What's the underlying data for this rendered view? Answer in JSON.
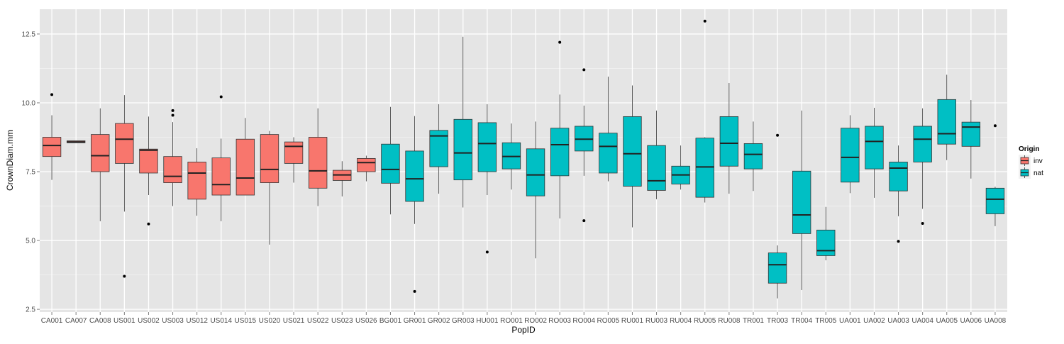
{
  "chart_data": {
    "type": "box",
    "xlabel": "PopID",
    "ylabel": "CrownDiam.mm",
    "ylim": [
      2.4,
      13.4
    ],
    "yticks": [
      2.5,
      5.0,
      7.5,
      10.0,
      12.5
    ],
    "ytick_labels": [
      "2.5",
      "5.0",
      "7.5",
      "10.0",
      "12.5"
    ],
    "grid": true,
    "legend": {
      "title": "Origin",
      "placement": "right",
      "entries": [
        {
          "label": "inv",
          "color": "#F8766D"
        },
        {
          "label": "nat",
          "color": "#00BFC4"
        }
      ]
    },
    "colors": {
      "inv": "#F8766D",
      "nat": "#00BFC4",
      "panel": "#E5E5E5",
      "grid": "#FFFFFF"
    },
    "categories": [
      "CA001",
      "CA007",
      "CA008",
      "US001",
      "US002",
      "US003",
      "US012",
      "US014",
      "US015",
      "US020",
      "US021",
      "US022",
      "US023",
      "US026",
      "BG001",
      "GR001",
      "GR002",
      "GR003",
      "HU001",
      "RO001",
      "RO002",
      "RO003",
      "RO004",
      "RO005",
      "RU001",
      "RU003",
      "RU004",
      "RU005",
      "RU008",
      "TR001",
      "TR003",
      "TR004",
      "TR005",
      "UA001",
      "UA002",
      "UA003",
      "UA004",
      "UA005",
      "UA006",
      "UA008"
    ],
    "boxes": [
      {
        "id": "CA001",
        "origin": "inv",
        "whisker_low": 7.2,
        "q1": 8.05,
        "median": 8.45,
        "q3": 8.75,
        "whisker_high": 9.55,
        "outliers": [
          10.3
        ]
      },
      {
        "id": "CA007",
        "origin": "inv",
        "whisker_low": 8.55,
        "q1": 8.55,
        "median": 8.58,
        "q3": 8.62,
        "whisker_high": 8.62,
        "outliers": []
      },
      {
        "id": "CA008",
        "origin": "inv",
        "whisker_low": 5.7,
        "q1": 7.5,
        "median": 8.08,
        "q3": 8.85,
        "whisker_high": 9.8,
        "outliers": []
      },
      {
        "id": "US001",
        "origin": "inv",
        "whisker_low": 6.05,
        "q1": 7.8,
        "median": 8.68,
        "q3": 9.25,
        "whisker_high": 10.28,
        "outliers": [
          3.7
        ]
      },
      {
        "id": "US002",
        "origin": "inv",
        "whisker_low": 6.65,
        "q1": 7.45,
        "median": 8.28,
        "q3": 8.32,
        "whisker_high": 9.5,
        "outliers": [
          5.6
        ]
      },
      {
        "id": "US003",
        "origin": "inv",
        "whisker_low": 6.25,
        "q1": 7.1,
        "median": 7.33,
        "q3": 8.05,
        "whisker_high": 9.3,
        "outliers": [
          9.55,
          9.72
        ]
      },
      {
        "id": "US012",
        "origin": "inv",
        "whisker_low": 5.9,
        "q1": 6.5,
        "median": 7.45,
        "q3": 7.85,
        "whisker_high": 8.35,
        "outliers": []
      },
      {
        "id": "US014",
        "origin": "inv",
        "whisker_low": 5.7,
        "q1": 6.65,
        "median": 7.03,
        "q3": 8.0,
        "whisker_high": 8.7,
        "outliers": [
          10.22
        ]
      },
      {
        "id": "US015",
        "origin": "inv",
        "whisker_low": 6.65,
        "q1": 6.65,
        "median": 7.27,
        "q3": 8.68,
        "whisker_high": 9.45,
        "outliers": []
      },
      {
        "id": "US020",
        "origin": "inv",
        "whisker_low": 4.85,
        "q1": 7.1,
        "median": 7.58,
        "q3": 8.85,
        "whisker_high": 8.98,
        "outliers": []
      },
      {
        "id": "US021",
        "origin": "inv",
        "whisker_low": 7.1,
        "q1": 7.8,
        "median": 8.42,
        "q3": 8.58,
        "whisker_high": 8.75,
        "outliers": []
      },
      {
        "id": "US022",
        "origin": "inv",
        "whisker_low": 6.25,
        "q1": 6.9,
        "median": 7.53,
        "q3": 8.75,
        "whisker_high": 9.8,
        "outliers": []
      },
      {
        "id": "US023",
        "origin": "inv",
        "whisker_low": 6.6,
        "q1": 7.18,
        "median": 7.38,
        "q3": 7.55,
        "whisker_high": 7.88,
        "outliers": []
      },
      {
        "id": "US026",
        "origin": "inv",
        "whisker_low": 7.15,
        "q1": 7.5,
        "median": 7.83,
        "q3": 7.98,
        "whisker_high": 8.08,
        "outliers": []
      },
      {
        "id": "BG001",
        "origin": "nat",
        "whisker_low": 5.95,
        "q1": 7.08,
        "median": 7.58,
        "q3": 8.5,
        "whisker_high": 9.85,
        "outliers": []
      },
      {
        "id": "GR001",
        "origin": "nat",
        "whisker_low": 5.6,
        "q1": 6.42,
        "median": 7.24,
        "q3": 8.25,
        "whisker_high": 9.52,
        "outliers": [
          3.15
        ]
      },
      {
        "id": "GR002",
        "origin": "nat",
        "whisker_low": 6.7,
        "q1": 7.68,
        "median": 8.8,
        "q3": 9.0,
        "whisker_high": 9.95,
        "outliers": []
      },
      {
        "id": "GR003",
        "origin": "nat",
        "whisker_low": 6.2,
        "q1": 7.2,
        "median": 8.18,
        "q3": 9.4,
        "whisker_high": 12.4,
        "outliers": []
      },
      {
        "id": "HU001",
        "origin": "nat",
        "whisker_low": 6.65,
        "q1": 7.5,
        "median": 8.52,
        "q3": 9.28,
        "whisker_high": 9.95,
        "outliers": [
          4.58
        ]
      },
      {
        "id": "RO001",
        "origin": "nat",
        "whisker_low": 6.85,
        "q1": 7.6,
        "median": 8.05,
        "q3": 8.55,
        "whisker_high": 9.25,
        "outliers": []
      },
      {
        "id": "RO002",
        "origin": "nat",
        "whisker_low": 4.35,
        "q1": 6.62,
        "median": 7.38,
        "q3": 8.33,
        "whisker_high": 9.32,
        "outliers": []
      },
      {
        "id": "RO003",
        "origin": "nat",
        "whisker_low": 5.8,
        "q1": 7.35,
        "median": 8.48,
        "q3": 9.08,
        "whisker_high": 10.3,
        "outliers": [
          12.2
        ]
      },
      {
        "id": "RO004",
        "origin": "nat",
        "whisker_low": 7.35,
        "q1": 8.25,
        "median": 8.68,
        "q3": 9.15,
        "whisker_high": 9.9,
        "outliers": [
          11.2,
          5.72
        ]
      },
      {
        "id": "RO005",
        "origin": "nat",
        "whisker_low": 7.15,
        "q1": 7.45,
        "median": 8.42,
        "q3": 8.9,
        "whisker_high": 10.95,
        "outliers": []
      },
      {
        "id": "RU001",
        "origin": "nat",
        "whisker_low": 5.48,
        "q1": 6.97,
        "median": 8.15,
        "q3": 9.5,
        "whisker_high": 10.63,
        "outliers": []
      },
      {
        "id": "RU003",
        "origin": "nat",
        "whisker_low": 6.5,
        "q1": 6.82,
        "median": 7.17,
        "q3": 8.45,
        "whisker_high": 9.72,
        "outliers": []
      },
      {
        "id": "RU004",
        "origin": "nat",
        "whisker_low": 6.85,
        "q1": 7.05,
        "median": 7.38,
        "q3": 7.7,
        "whisker_high": 8.45,
        "outliers": []
      },
      {
        "id": "RU005",
        "origin": "nat",
        "whisker_low": 6.38,
        "q1": 6.57,
        "median": 7.67,
        "q3": 8.72,
        "whisker_high": 8.75,
        "outliers": [
          12.97
        ]
      },
      {
        "id": "RU008",
        "origin": "nat",
        "whisker_low": 6.7,
        "q1": 7.7,
        "median": 8.53,
        "q3": 9.5,
        "whisker_high": 10.72,
        "outliers": []
      },
      {
        "id": "TR001",
        "origin": "nat",
        "whisker_low": 6.8,
        "q1": 7.6,
        "median": 8.13,
        "q3": 8.52,
        "whisker_high": 9.32,
        "outliers": []
      },
      {
        "id": "TR003",
        "origin": "nat",
        "whisker_low": 2.9,
        "q1": 3.45,
        "median": 4.12,
        "q3": 4.55,
        "whisker_high": 4.82,
        "outliers": [
          8.82
        ]
      },
      {
        "id": "TR004",
        "origin": "nat",
        "whisker_low": 3.2,
        "q1": 5.25,
        "median": 5.93,
        "q3": 7.52,
        "whisker_high": 9.72,
        "outliers": []
      },
      {
        "id": "TR005",
        "origin": "nat",
        "whisker_low": 4.28,
        "q1": 4.45,
        "median": 4.63,
        "q3": 5.38,
        "whisker_high": 6.22,
        "outliers": []
      },
      {
        "id": "UA001",
        "origin": "nat",
        "whisker_low": 6.72,
        "q1": 7.12,
        "median": 8.02,
        "q3": 9.08,
        "whisker_high": 9.55,
        "outliers": []
      },
      {
        "id": "UA002",
        "origin": "nat",
        "whisker_low": 6.55,
        "q1": 7.6,
        "median": 8.6,
        "q3": 9.15,
        "whisker_high": 9.82,
        "outliers": []
      },
      {
        "id": "UA003",
        "origin": "nat",
        "whisker_low": 5.88,
        "q1": 6.8,
        "median": 7.63,
        "q3": 7.85,
        "whisker_high": 8.45,
        "outliers": [
          4.97
        ]
      },
      {
        "id": "UA004",
        "origin": "nat",
        "whisker_low": 6.15,
        "q1": 7.85,
        "median": 8.68,
        "q3": 9.15,
        "whisker_high": 9.8,
        "outliers": [
          5.62
        ]
      },
      {
        "id": "UA005",
        "origin": "nat",
        "whisker_low": 7.92,
        "q1": 8.5,
        "median": 8.88,
        "q3": 10.12,
        "whisker_high": 11.02,
        "outliers": []
      },
      {
        "id": "UA006",
        "origin": "nat",
        "whisker_low": 7.25,
        "q1": 8.42,
        "median": 9.12,
        "q3": 9.3,
        "whisker_high": 10.1,
        "outliers": []
      },
      {
        "id": "UA008",
        "origin": "nat",
        "whisker_low": 5.52,
        "q1": 5.97,
        "median": 6.5,
        "q3": 6.9,
        "whisker_high": 6.95,
        "outliers": [
          9.17
        ]
      }
    ]
  }
}
